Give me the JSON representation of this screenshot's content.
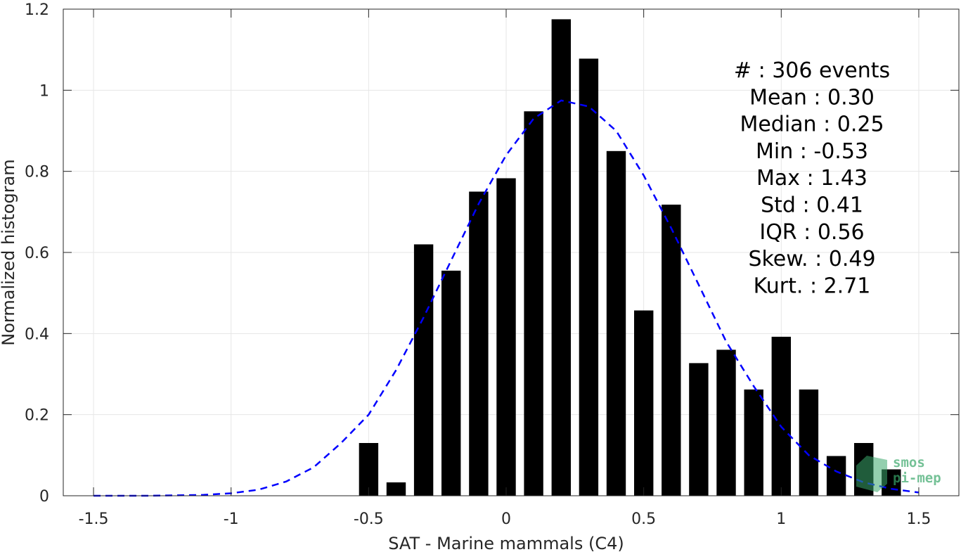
{
  "chart_data": {
    "type": "bar",
    "title": "",
    "xlabel": "SAT - Marine mammals (C4)",
    "ylabel": "Normalized histogram",
    "xlim": [
      -1.5,
      1.5
    ],
    "ylim": [
      0,
      1.2
    ],
    "xticks": [
      "-1.5",
      "-1",
      "-0.5",
      "0",
      "0.5",
      "1",
      "1.5"
    ],
    "yticks": [
      "0",
      "0.2",
      "0.4",
      "0.6",
      "0.8",
      "1",
      "1.2"
    ],
    "grid": true,
    "bar_width": 0.07,
    "bar_color": "#000000",
    "bars": {
      "x": [
        -0.5,
        -0.4,
        -0.3,
        -0.2,
        -0.1,
        0.0,
        0.1,
        0.2,
        0.3,
        0.4,
        0.5,
        0.6,
        0.7,
        0.8,
        0.9,
        1.0,
        1.1,
        1.2,
        1.3,
        1.4
      ],
      "values": [
        0.13,
        0.033,
        0.62,
        0.555,
        0.75,
        0.783,
        0.948,
        1.175,
        1.078,
        0.85,
        0.457,
        0.718,
        0.327,
        0.36,
        0.262,
        0.392,
        0.262,
        0.098,
        0.13,
        0.065
      ]
    },
    "fit_curve": {
      "style": "dashed",
      "color": "#0000ff",
      "x": [
        -1.5,
        -1.4,
        -1.3,
        -1.2,
        -1.1,
        -1.0,
        -0.9,
        -0.8,
        -0.7,
        -0.6,
        -0.5,
        -0.4,
        -0.3,
        -0.2,
        -0.1,
        0.0,
        0.1,
        0.2,
        0.3,
        0.4,
        0.5,
        0.6,
        0.7,
        0.8,
        0.9,
        1.0,
        1.1,
        1.2,
        1.3,
        1.4,
        1.5
      ],
      "y": [
        0.0,
        0.0,
        0.0,
        0.001,
        0.002,
        0.006,
        0.015,
        0.035,
        0.07,
        0.13,
        0.2,
        0.31,
        0.44,
        0.58,
        0.72,
        0.84,
        0.93,
        0.975,
        0.96,
        0.9,
        0.79,
        0.66,
        0.52,
        0.38,
        0.27,
        0.17,
        0.1,
        0.06,
        0.033,
        0.017,
        0.008
      ]
    },
    "annotations": [
      "#  : 306 events",
      "Mean : 0.30",
      "Median : 0.25",
      "Min : -0.53",
      "Max : 1.43",
      "Std : 0.41",
      "IQR : 0.56",
      "Skew. : 0.49",
      "Kurt. : 2.71"
    ]
  },
  "logo": {
    "line1": "smos",
    "line2": "pi-mep",
    "color": "#3aa86b"
  }
}
